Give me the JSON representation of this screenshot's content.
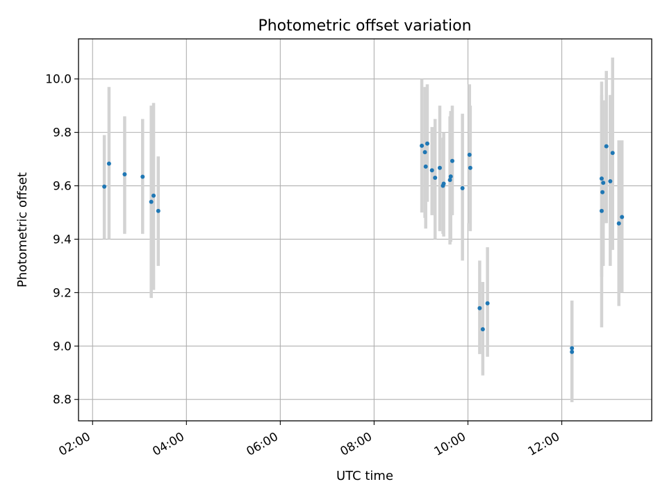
{
  "chart_data": {
    "type": "scatter",
    "title": "Photometric offset variation",
    "xlabel": "UTC time",
    "ylabel": "Photometric offset",
    "xlim": [
      "01:42",
      "13:55"
    ],
    "ylim": [
      8.72,
      10.15
    ],
    "x_ticks": [
      "02:00",
      "04:00",
      "06:00",
      "08:00",
      "10:00",
      "12:00"
    ],
    "y_ticks": [
      "8.8",
      "9.0",
      "9.2",
      "9.4",
      "9.6",
      "9.8",
      "10.0"
    ],
    "grid": true,
    "marker_color": "#1f77b4",
    "errorbar_color": "#d3d3d3",
    "points": [
      {
        "x": "02:15",
        "y": 9.597,
        "yerr_low": 9.4,
        "yerr_high": 9.79
      },
      {
        "x": "02:21",
        "y": 9.683,
        "yerr_low": 9.4,
        "yerr_high": 9.97
      },
      {
        "x": "02:41",
        "y": 9.643,
        "yerr_low": 9.42,
        "yerr_high": 9.86
      },
      {
        "x": "03:04",
        "y": 9.634,
        "yerr_low": 9.42,
        "yerr_high": 9.85
      },
      {
        "x": "03:15",
        "y": 9.54,
        "yerr_low": 9.18,
        "yerr_high": 9.9
      },
      {
        "x": "03:18",
        "y": 9.563,
        "yerr_low": 9.21,
        "yerr_high": 9.91
      },
      {
        "x": "03:24",
        "y": 9.506,
        "yerr_low": 9.3,
        "yerr_high": 9.71
      },
      {
        "x": "09:01",
        "y": 9.75,
        "yerr_low": 9.5,
        "yerr_high": 10.0
      },
      {
        "x": "09:05",
        "y": 9.726,
        "yerr_low": 9.48,
        "yerr_high": 9.97
      },
      {
        "x": "09:06",
        "y": 9.672,
        "yerr_low": 9.44,
        "yerr_high": 9.91
      },
      {
        "x": "09:08",
        "y": 9.758,
        "yerr_low": 9.54,
        "yerr_high": 9.98
      },
      {
        "x": "09:14",
        "y": 9.658,
        "yerr_low": 9.49,
        "yerr_high": 9.82
      },
      {
        "x": "09:18",
        "y": 9.63,
        "yerr_low": 9.4,
        "yerr_high": 9.85
      },
      {
        "x": "09:24",
        "y": 9.667,
        "yerr_low": 9.43,
        "yerr_high": 9.9
      },
      {
        "x": "09:28",
        "y": 9.6,
        "yerr_low": 9.42,
        "yerr_high": 9.78
      },
      {
        "x": "09:29",
        "y": 9.608,
        "yerr_low": 9.41,
        "yerr_high": 9.8
      },
      {
        "x": "09:37",
        "y": 9.622,
        "yerr_low": 9.38,
        "yerr_high": 9.86
      },
      {
        "x": "09:38",
        "y": 9.635,
        "yerr_low": 9.39,
        "yerr_high": 9.88
      },
      {
        "x": "09:40",
        "y": 9.693,
        "yerr_low": 9.49,
        "yerr_high": 9.9
      },
      {
        "x": "09:53",
        "y": 9.591,
        "yerr_low": 9.32,
        "yerr_high": 9.87
      },
      {
        "x": "10:02",
        "y": 9.716,
        "yerr_low": 9.46,
        "yerr_high": 9.98
      },
      {
        "x": "10:03",
        "y": 9.667,
        "yerr_low": 9.43,
        "yerr_high": 9.9
      },
      {
        "x": "10:15",
        "y": 9.142,
        "yerr_low": 8.97,
        "yerr_high": 9.32
      },
      {
        "x": "10:19",
        "y": 9.063,
        "yerr_low": 8.89,
        "yerr_high": 9.24
      },
      {
        "x": "10:25",
        "y": 9.16,
        "yerr_low": 8.96,
        "yerr_high": 9.37
      },
      {
        "x": "12:13",
        "y": 8.992,
        "yerr_low": 8.8,
        "yerr_high": 9.17
      },
      {
        "x": "12:13",
        "y": 8.978,
        "yerr_low": 8.79,
        "yerr_high": 9.17
      },
      {
        "x": "12:51",
        "y": 9.506,
        "yerr_low": 9.07,
        "yerr_high": 9.94
      },
      {
        "x": "12:51",
        "y": 9.627,
        "yerr_low": 9.26,
        "yerr_high": 9.99
      },
      {
        "x": "12:52",
        "y": 9.576,
        "yerr_low": 9.3,
        "yerr_high": 9.85
      },
      {
        "x": "12:53",
        "y": 9.611,
        "yerr_low": 9.3,
        "yerr_high": 9.92
      },
      {
        "x": "12:57",
        "y": 9.748,
        "yerr_low": 9.46,
        "yerr_high": 10.03
      },
      {
        "x": "13:02",
        "y": 9.617,
        "yerr_low": 9.3,
        "yerr_high": 9.94
      },
      {
        "x": "13:05",
        "y": 9.723,
        "yerr_low": 9.36,
        "yerr_high": 10.08
      },
      {
        "x": "13:13",
        "y": 9.459,
        "yerr_low": 9.15,
        "yerr_high": 9.77
      },
      {
        "x": "13:17",
        "y": 9.483,
        "yerr_low": 9.2,
        "yerr_high": 9.77
      }
    ]
  }
}
